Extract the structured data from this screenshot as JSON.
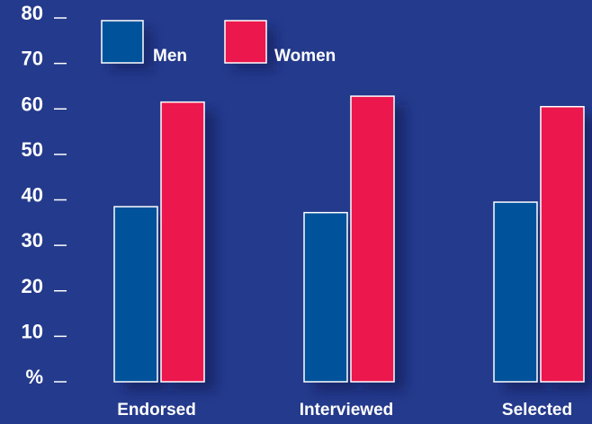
{
  "chart_data": {
    "type": "bar",
    "categories": [
      "Endorsed",
      "Interviewed",
      "Selected"
    ],
    "series": [
      {
        "name": "Men",
        "values": [
          38.5,
          37.2,
          39.5
        ],
        "color": "#00529b"
      },
      {
        "name": "Women",
        "values": [
          61.5,
          62.8,
          60.5
        ],
        "color": "#ec174c"
      }
    ],
    "y_ticks": [
      "%",
      "10",
      "20",
      "30",
      "40",
      "50",
      "60",
      "70",
      "80"
    ],
    "ylim": [
      0,
      80
    ],
    "legend_position": "top-left",
    "colors": {
      "background": "#243a8c",
      "text": "#ffffff",
      "bar_outline": "#ffffff"
    }
  }
}
